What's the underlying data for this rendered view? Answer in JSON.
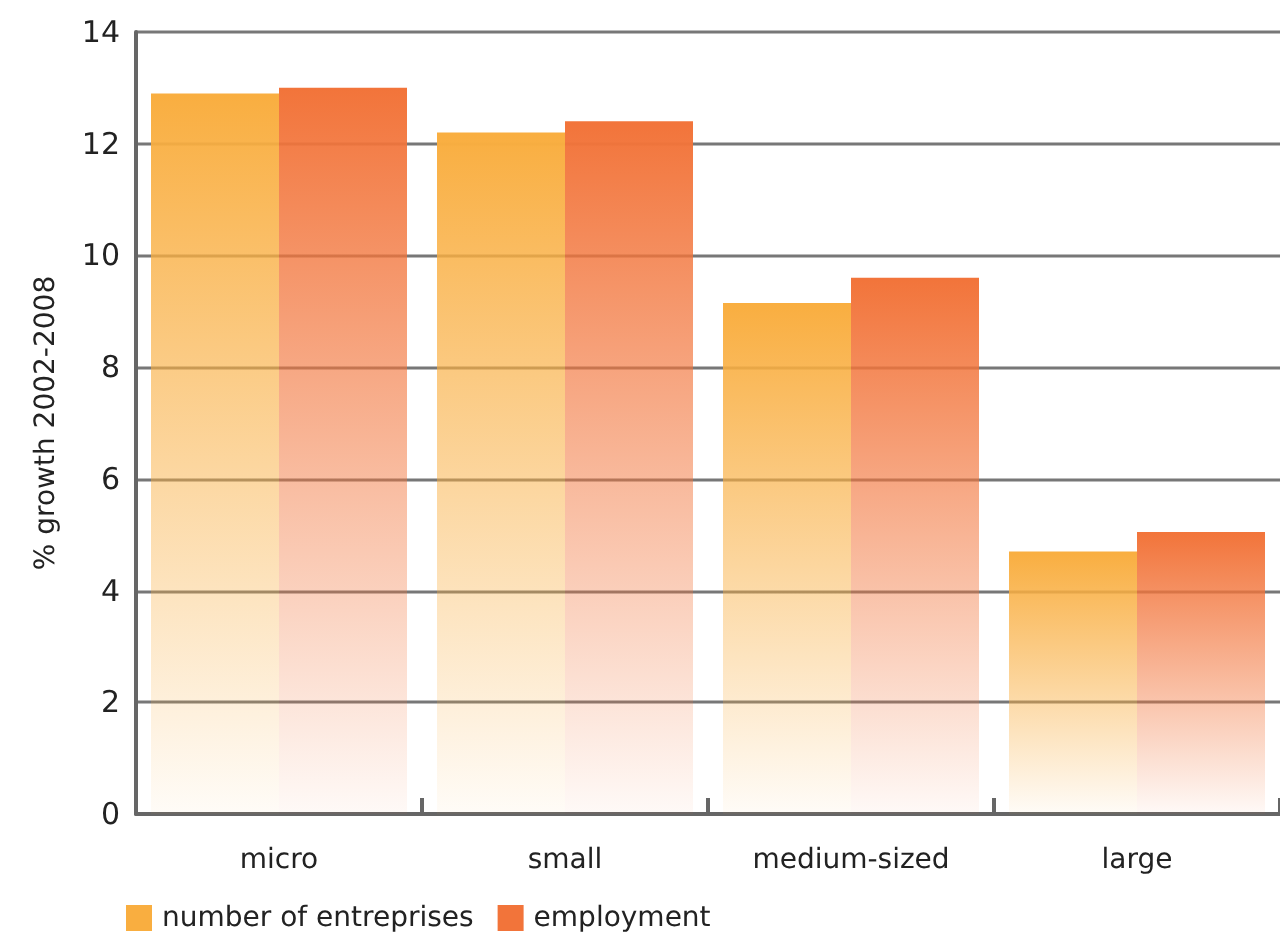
{
  "chart_data": {
    "type": "bar",
    "ylabel": "% growth 2002-2008",
    "categories": [
      "micro",
      "small",
      "medium-sized",
      "large"
    ],
    "series": [
      {
        "name": "number of entreprises",
        "color": "#f9ae40",
        "values": [
          12.9,
          12.2,
          9.15,
          4.7
        ]
      },
      {
        "name": "employment",
        "color": "#f2743a",
        "values": [
          13.0,
          12.4,
          9.6,
          5.05
        ]
      }
    ],
    "ylim": [
      0,
      14
    ],
    "yticks": [
      0,
      2,
      4,
      6,
      8,
      10,
      12,
      14
    ],
    "grid": "y",
    "legend": "bottom left"
  }
}
